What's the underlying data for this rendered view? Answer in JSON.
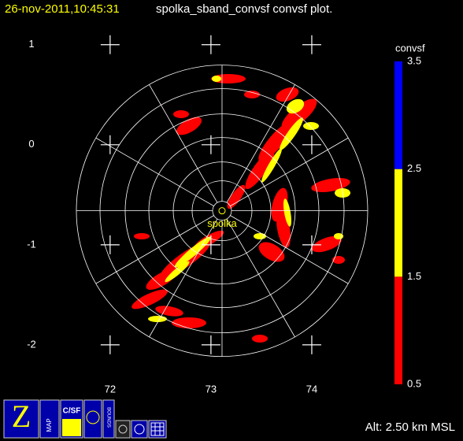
{
  "chart_data": {
    "type": "ppi",
    "timestamp": "26-nov-2011,10:45:31",
    "title": "spolka_sband_convsf convsf  plot.",
    "xlim": [
      71.4,
      74.75
    ],
    "ylim": [
      -2.3,
      1.25
    ],
    "xticks": [
      72,
      73,
      74
    ],
    "yticks": [
      1,
      0,
      -1,
      -2
    ],
    "radar": {
      "name": "spolka",
      "lon": 73.11,
      "lat": -0.66
    },
    "colorbar": {
      "label": "convsf",
      "lim": [
        0.5,
        3.5
      ],
      "ticks": [
        0.5,
        1.5,
        2.5,
        3.5
      ],
      "colors": [
        "#ff0000",
        "#ffff00",
        "#0000ff"
      ]
    },
    "altitude": "Alt: 2.50 km MSL"
  },
  "toolbar": {
    "buttons": [
      "MAP",
      "C/SF",
      "BOUNDS"
    ]
  }
}
